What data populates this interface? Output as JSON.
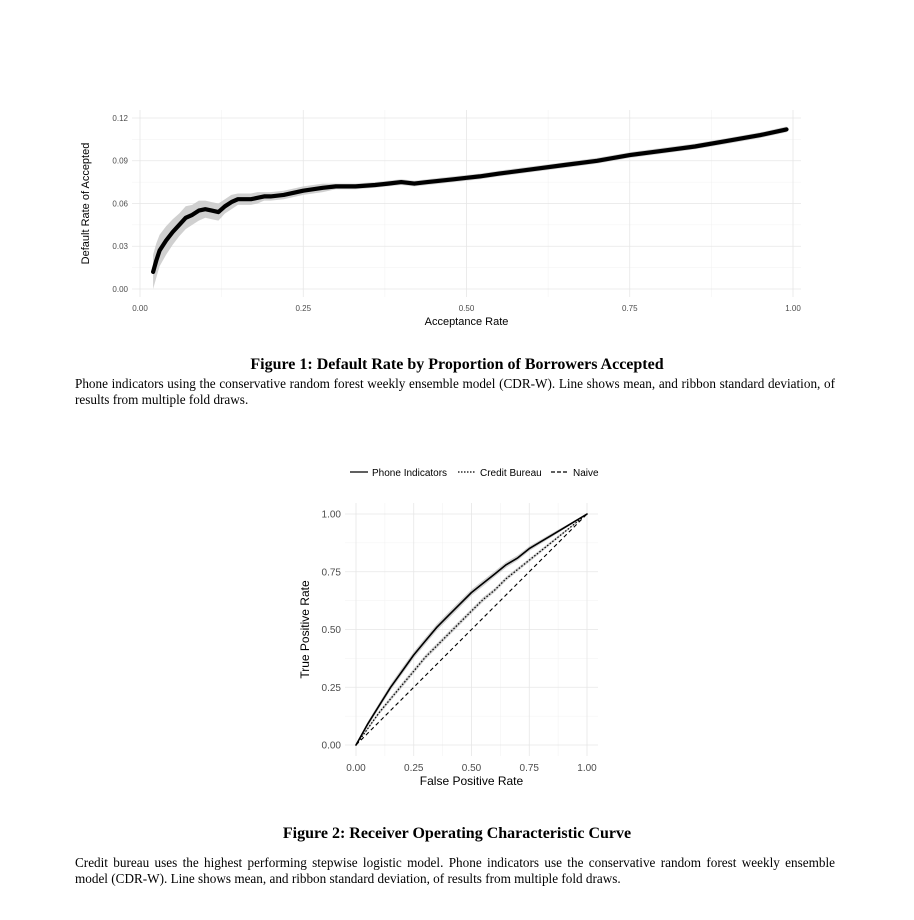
{
  "figures": [
    {
      "caption_title": "Figure 1: Default Rate by Proportion of Borrowers Accepted",
      "caption_text": "Phone indicators using the conservative random forest weekly ensemble model (CDR-W). Line shows mean, and ribbon standard deviation, of results from multiple fold draws."
    },
    {
      "caption_title": "Figure 2: Receiver Operating Characteristic Curve",
      "caption_text": "Credit bureau uses the highest performing stepwise logistic model. Phone indicators use the conservative random forest weekly ensemble model (CDR-W). Line shows mean, and ribbon standard deviation, of results from multiple fold draws."
    }
  ],
  "colors": {
    "line": "#000000",
    "ribbon": "#c8c8c8",
    "grid_major": "#e6e6e6",
    "grid_minor": "#f2f2f2",
    "tick_text": "#4d4d4d"
  },
  "chart_data": [
    {
      "type": "line",
      "title": "",
      "xlabel": "Acceptance Rate",
      "ylabel": "Default Rate of Accepted",
      "xlim": [
        0,
        1
      ],
      "ylim": [
        0,
        0.12
      ],
      "xticks": [
        "0.00",
        "0.25",
        "0.50",
        "0.75",
        "1.00"
      ],
      "yticks": [
        "0.00",
        "0.03",
        "0.06",
        "0.09",
        "0.12"
      ],
      "grid": true,
      "legend": "none",
      "series": [
        {
          "x": [
            0.02,
            0.025,
            0.03,
            0.04,
            0.05,
            0.06,
            0.07,
            0.08,
            0.09,
            0.1,
            0.11,
            0.12,
            0.13,
            0.14,
            0.15,
            0.17,
            0.18,
            0.19,
            0.2,
            0.22,
            0.25,
            0.28,
            0.3,
            0.33,
            0.36,
            0.38,
            0.4,
            0.42,
            0.44,
            0.46,
            0.48,
            0.5,
            0.52,
            0.55,
            0.6,
            0.65,
            0.7,
            0.75,
            0.8,
            0.85,
            0.9,
            0.95,
            0.99
          ],
          "y": [
            0.012,
            0.02,
            0.027,
            0.034,
            0.04,
            0.045,
            0.05,
            0.052,
            0.055,
            0.056,
            0.055,
            0.054,
            0.058,
            0.061,
            0.063,
            0.063,
            0.064,
            0.065,
            0.065,
            0.066,
            0.069,
            0.071,
            0.072,
            0.072,
            0.073,
            0.074,
            0.075,
            0.074,
            0.075,
            0.076,
            0.077,
            0.078,
            0.079,
            0.081,
            0.084,
            0.087,
            0.09,
            0.094,
            0.097,
            0.1,
            0.104,
            0.108,
            0.112
          ],
          "sd": [
            0.012,
            0.012,
            0.011,
            0.01,
            0.009,
            0.008,
            0.008,
            0.007,
            0.007,
            0.006,
            0.006,
            0.006,
            0.005,
            0.005,
            0.004,
            0.004,
            0.004,
            0.003,
            0.003,
            0.003,
            0.003,
            0.003,
            0.002,
            0.002,
            0.002,
            0.002,
            0.002,
            0.002,
            0.002,
            0.002,
            0.002,
            0.002,
            0.002,
            0.002,
            0.002,
            0.002,
            0.002,
            0.002,
            0.002,
            0.002,
            0.002,
            0.002,
            0.002
          ]
        }
      ]
    },
    {
      "type": "line",
      "title": "",
      "xlabel": "False Positive Rate",
      "ylabel": "True Positive Rate",
      "xlim": [
        0,
        1
      ],
      "ylim": [
        0,
        1
      ],
      "xticks": [
        "0.00",
        "0.25",
        "0.50",
        "0.75",
        "1.00"
      ],
      "yticks": [
        "0.00",
        "0.25",
        "0.50",
        "0.75",
        "1.00"
      ],
      "grid": true,
      "legend": "top",
      "series": [
        {
          "name": "Phone Indicators",
          "style": "solid",
          "x": [
            0,
            0.05,
            0.1,
            0.15,
            0.2,
            0.25,
            0.3,
            0.35,
            0.4,
            0.45,
            0.5,
            0.55,
            0.6,
            0.65,
            0.7,
            0.75,
            0.8,
            0.85,
            0.9,
            0.95,
            1
          ],
          "y": [
            0,
            0.09,
            0.17,
            0.25,
            0.32,
            0.39,
            0.45,
            0.51,
            0.56,
            0.61,
            0.66,
            0.7,
            0.74,
            0.78,
            0.81,
            0.85,
            0.88,
            0.91,
            0.94,
            0.97,
            1
          ],
          "sd": [
            0,
            0.01,
            0.012,
            0.013,
            0.014,
            0.014,
            0.014,
            0.014,
            0.014,
            0.014,
            0.013,
            0.013,
            0.012,
            0.012,
            0.011,
            0.01,
            0.009,
            0.008,
            0.006,
            0.004,
            0
          ]
        },
        {
          "name": "Credit Bureau",
          "style": "dotted",
          "x": [
            0,
            0.05,
            0.1,
            0.15,
            0.2,
            0.25,
            0.3,
            0.35,
            0.4,
            0.45,
            0.5,
            0.55,
            0.6,
            0.65,
            0.7,
            0.75,
            0.8,
            0.85,
            0.9,
            0.95,
            1
          ],
          "y": [
            0,
            0.07,
            0.14,
            0.2,
            0.26,
            0.32,
            0.38,
            0.43,
            0.48,
            0.53,
            0.58,
            0.63,
            0.67,
            0.72,
            0.76,
            0.8,
            0.84,
            0.88,
            0.92,
            0.96,
            1
          ],
          "sd": [
            0,
            0.006,
            0.008,
            0.009,
            0.01,
            0.01,
            0.01,
            0.01,
            0.01,
            0.01,
            0.01,
            0.01,
            0.009,
            0.009,
            0.008,
            0.008,
            0.007,
            0.006,
            0.005,
            0.003,
            0
          ]
        },
        {
          "name": "Naive",
          "style": "dashed",
          "x": [
            0,
            1
          ],
          "y": [
            0,
            1
          ]
        }
      ]
    }
  ]
}
